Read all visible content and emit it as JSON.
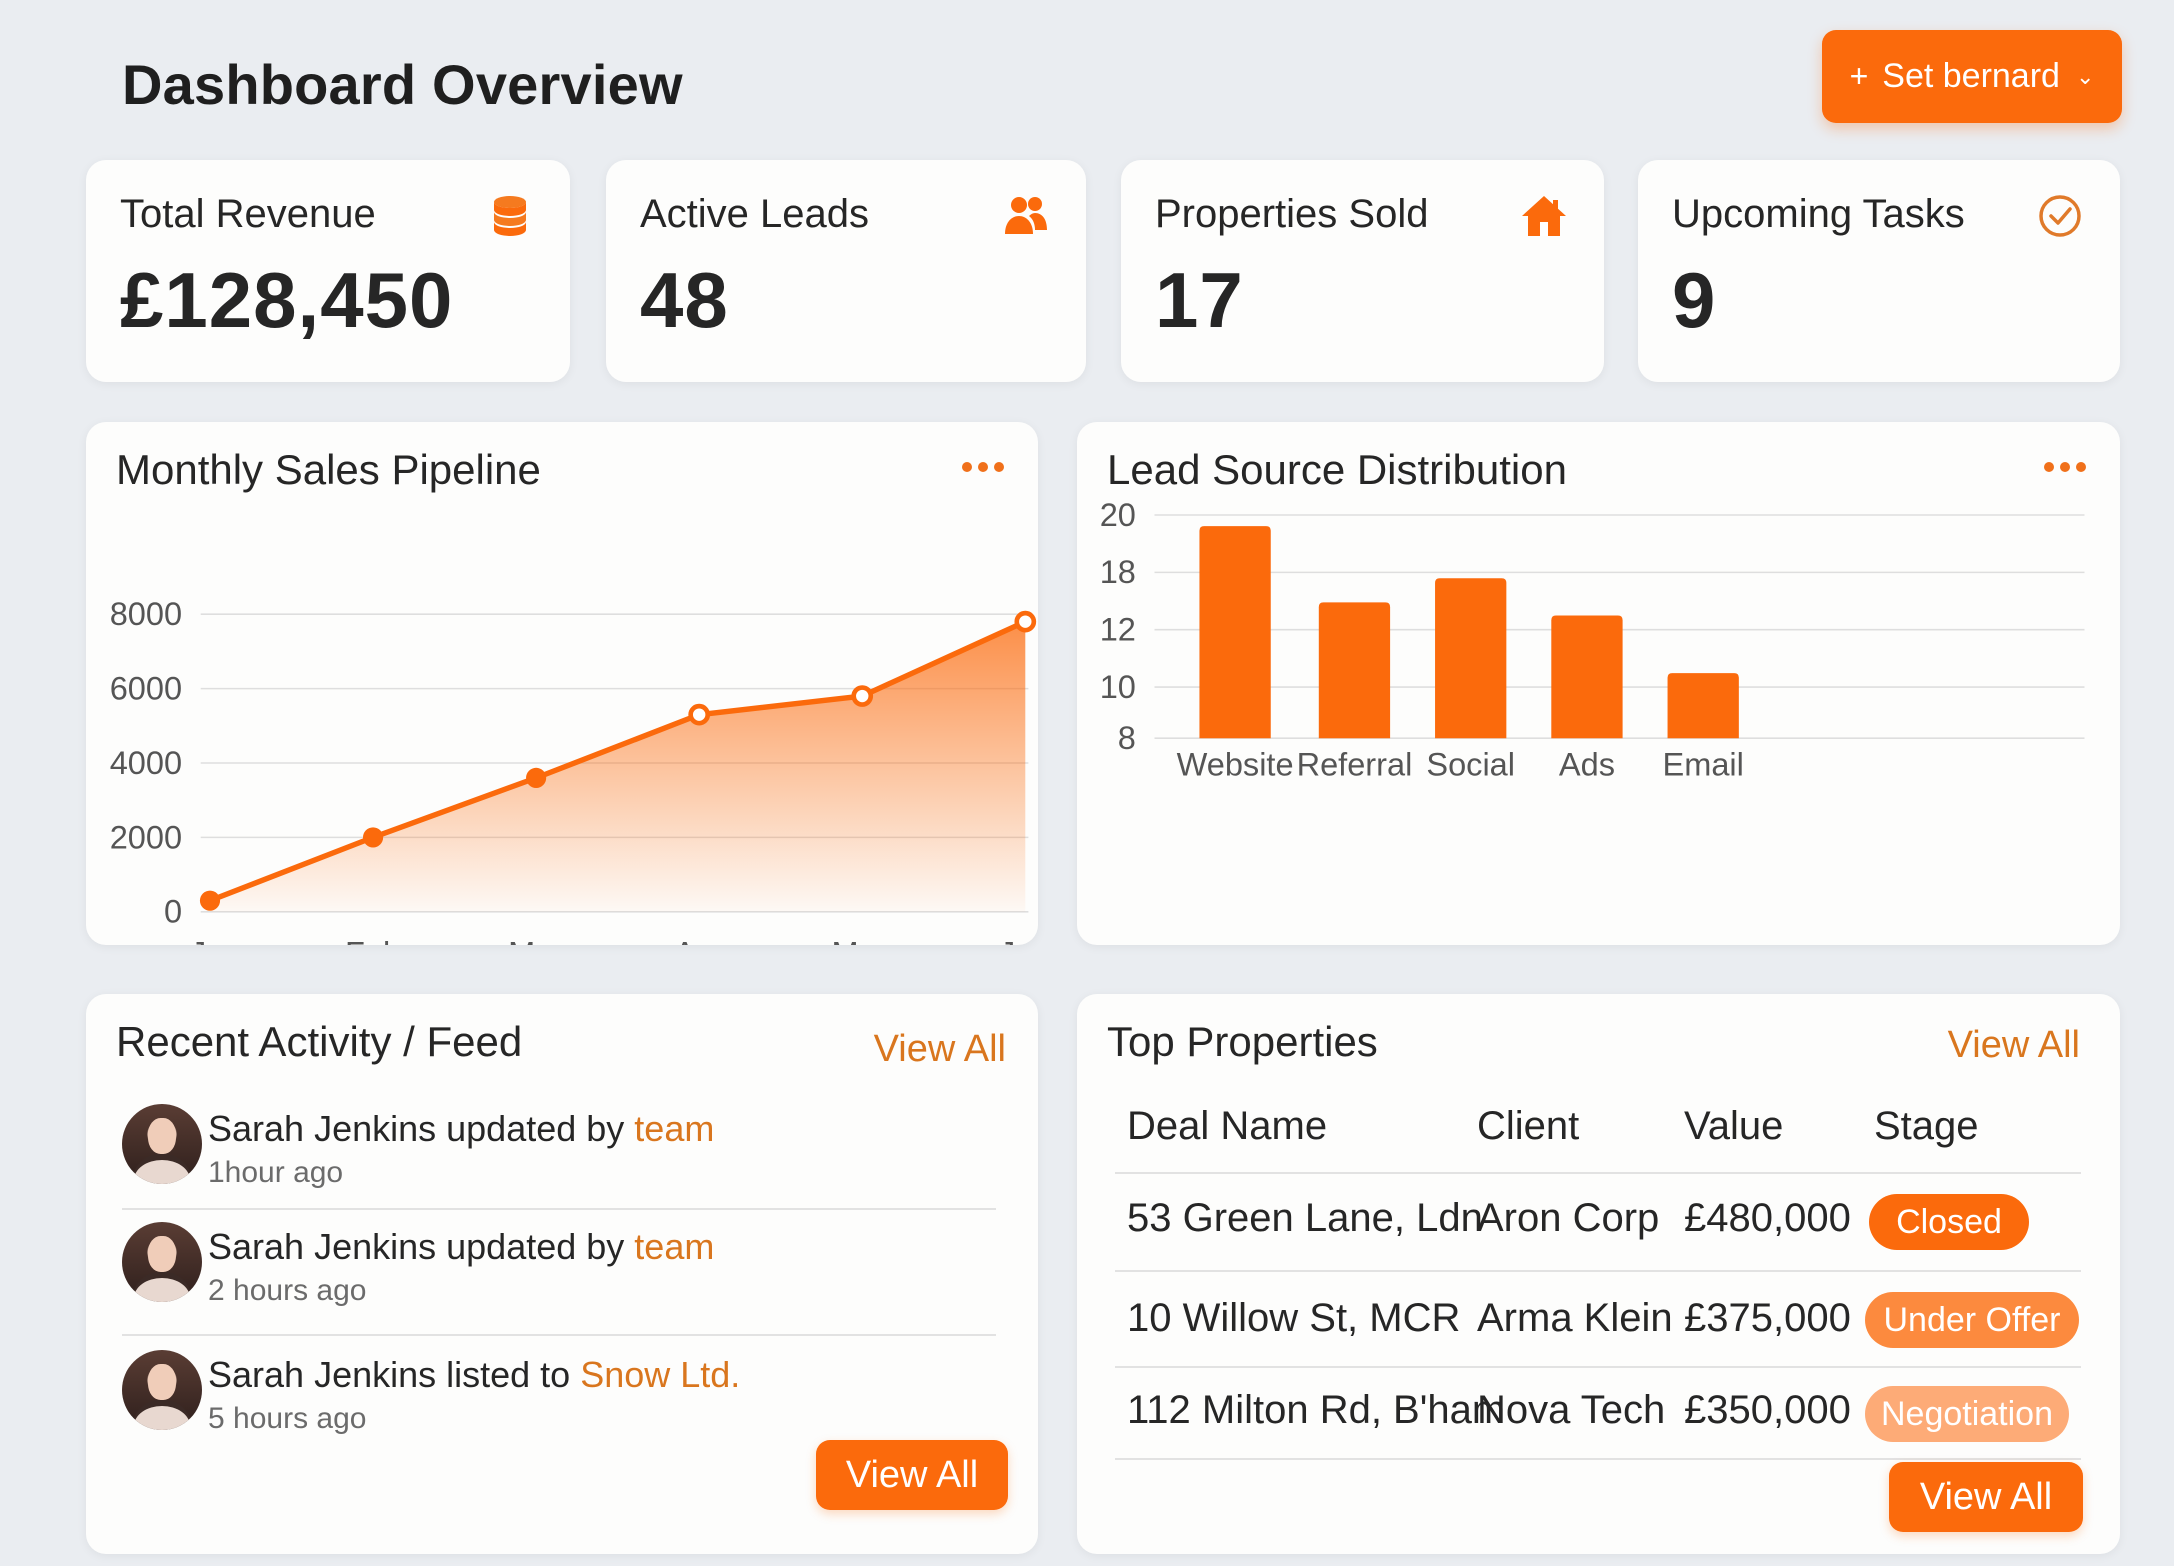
{
  "header": {
    "title": "Dashboard Overview",
    "action_button": {
      "icon": "plus-icon",
      "label": "Set bernard",
      "caret": "chevron-down-icon"
    }
  },
  "stats": [
    {
      "label": "Total Revenue",
      "value": "£128,450",
      "icon": "coins-stack-icon"
    },
    {
      "label": "Active Leads",
      "value": "48",
      "icon": "users-icon"
    },
    {
      "label": "Properties Sold",
      "value": "17",
      "icon": "house-icon"
    },
    {
      "label": "Upcoming Tasks",
      "value": "9",
      "icon": "check-circle-icon"
    }
  ],
  "colors": {
    "accent": "#fb6a0c",
    "accent_text": "#d9761e",
    "background": "#eaedf1",
    "card": "#fdfdfc"
  },
  "sales_chart": {
    "title": "Monthly Sales Pipeline",
    "menu_icon": "more-dots-icon"
  },
  "lead_chart": {
    "title": "Lead Source Distribution",
    "menu_icon": "more-dots-icon"
  },
  "chart_data": [
    {
      "type": "area",
      "title": "Monthly Sales Pipeline",
      "categories": [
        "Jan",
        "Feb",
        "Mar",
        "Apr",
        "May",
        "Jun"
      ],
      "values": [
        300,
        2000,
        3600,
        5300,
        5800,
        7800
      ],
      "yticks": [
        "8000",
        "6000",
        "4000",
        "2000",
        "0"
      ],
      "ylim": [
        0,
        8000
      ],
      "grid": true,
      "color": "#fb6a0c"
    },
    {
      "type": "bar",
      "title": "Lead Source Distribution",
      "categories": [
        "Website",
        "Referral",
        "Social",
        "Ads",
        "Email"
      ],
      "values": [
        19.4,
        15.3,
        16.6,
        14.6,
        11.5
      ],
      "yticks": [
        "20",
        "18",
        "12",
        "10",
        "8"
      ],
      "grid": true,
      "color": "#fb6a0c"
    }
  ],
  "activity": {
    "title": "Recent Activity / Feed",
    "view_all_link": "View All",
    "view_all_button": "View All",
    "items": [
      {
        "text": "Sarah Jenkins updated by ",
        "highlight": "team",
        "time": "1hour ago"
      },
      {
        "text": "Sarah Jenkins updated by ",
        "highlight": "team",
        "time": "2 hours ago"
      },
      {
        "text": "Sarah Jenkins listed to ",
        "highlight": "Snow Ltd.",
        "time": "5 hours ago"
      }
    ]
  },
  "properties": {
    "title": "Top Properties",
    "view_all_link": "View All",
    "view_all_button": "View All",
    "columns": [
      "Deal Name",
      "Client",
      "Value",
      "Stage"
    ],
    "rows": [
      {
        "deal": "53 Green Lane, Ldn",
        "client": "Aron Corp",
        "value": "£480,000",
        "stage": "Closed",
        "stage_color": "#fb6a0c"
      },
      {
        "deal": "10 Willow St, MCR",
        "client": "Arma Klein",
        "value": "£375,000",
        "stage": "Under Offer",
        "stage_color": "#fc8a3e"
      },
      {
        "deal": "112 Milton Rd, B'ham",
        "client": "Nova Tech",
        "value": "£350,000",
        "stage": "Negotiation",
        "stage_color": "#fdab77"
      }
    ]
  }
}
